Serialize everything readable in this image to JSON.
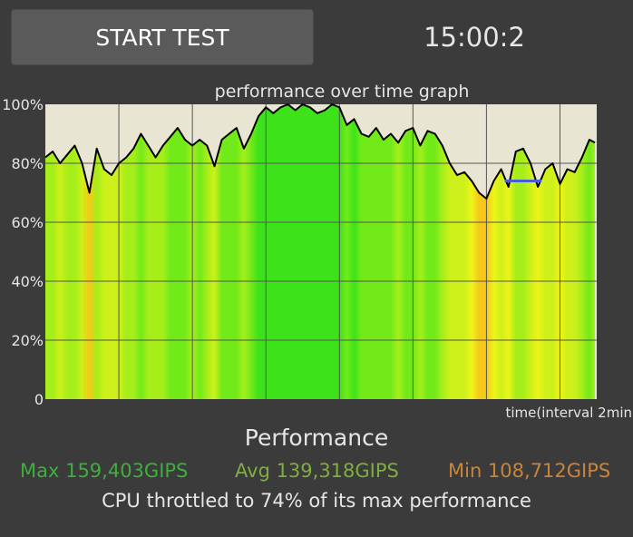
{
  "header": {
    "start_label": "START TEST",
    "timer": "15:00:2"
  },
  "colors": {
    "background": "#3b3b3b",
    "plot_background": "#e9e5d3",
    "line": "#000000",
    "min_marker": "#4a5bd6",
    "max_stat": "#3fae3f",
    "avg_stat": "#7eae3f",
    "min_stat": "#c8843c"
  },
  "chart_data": {
    "type": "area",
    "title": "performance over time graph",
    "xlabel": "time(interval 2min",
    "ylabel": "",
    "ylim": [
      0,
      100
    ],
    "xlim": [
      0,
      15
    ],
    "yticks": [
      "0",
      "20%",
      "40%",
      "60%",
      "80%",
      "100%"
    ],
    "x_grid_interval_min": 2,
    "grid": true,
    "series": [
      {
        "x": [
          0,
          0.2,
          0.4,
          0.6,
          0.8,
          1.0,
          1.2,
          1.4,
          1.6,
          1.8,
          2.0,
          2.2,
          2.4,
          2.6,
          2.8,
          3.0,
          3.2,
          3.4,
          3.6,
          3.8,
          4.0,
          4.2,
          4.4,
          4.6,
          4.8,
          5.0,
          5.2,
          5.4,
          5.6,
          5.8,
          6.0,
          6.2,
          6.4,
          6.6,
          6.8,
          7.0,
          7.2,
          7.4,
          7.6,
          7.8,
          8.0,
          8.2,
          8.4,
          8.6,
          8.8,
          9.0,
          9.2,
          9.4,
          9.6,
          9.8,
          10.0,
          10.2,
          10.4,
          10.6,
          10.8,
          11.0,
          11.2,
          11.4,
          11.6,
          11.8,
          12.0,
          12.2,
          12.4,
          12.6,
          12.8,
          13.0,
          13.2,
          13.4,
          13.6,
          13.8,
          14.0,
          14.2,
          14.4,
          14.6,
          14.8,
          14.95
        ],
        "values": [
          82,
          84,
          80,
          83,
          86,
          80,
          70,
          85,
          78,
          76,
          80,
          82,
          85,
          90,
          86,
          82,
          86,
          89,
          92,
          88,
          86,
          88,
          86,
          79,
          88,
          90,
          92,
          85,
          90,
          96,
          99,
          97,
          99,
          100,
          98,
          100,
          99,
          97,
          98,
          100,
          99,
          93,
          95,
          90,
          89,
          92,
          88,
          90,
          87,
          91,
          92,
          86,
          91,
          90,
          86,
          80,
          76,
          77,
          74,
          70,
          68,
          74,
          78,
          72,
          84,
          85,
          80,
          72,
          78,
          80,
          73,
          78,
          77,
          82,
          88,
          87
        ]
      }
    ],
    "min_marker": {
      "x_start": 12.5,
      "x_end": 13.5,
      "value": 74
    }
  },
  "performance": {
    "title": "Performance",
    "max": "Max 159,403GIPS",
    "avg": "Avg 139,318GIPS",
    "min": "Min 108,712GIPS",
    "throttle": "CPU throttled to 74% of its max performance"
  }
}
